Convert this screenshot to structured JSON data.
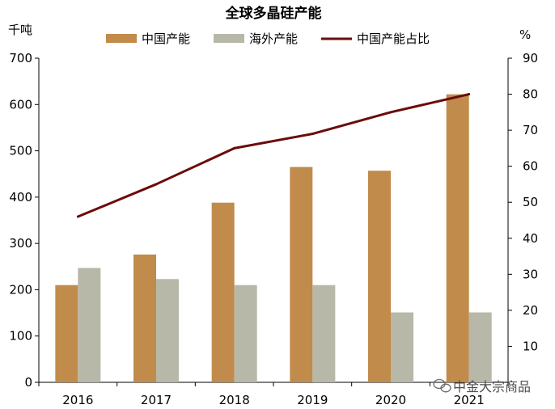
{
  "chart_data": {
    "type": "bar",
    "title": "全球多晶硅产能",
    "left_unit": "千吨",
    "right_unit": "%",
    "categories": [
      "2016",
      "2017",
      "2018",
      "2019",
      "2020",
      "2021"
    ],
    "series": [
      {
        "name": "中国产能",
        "type": "bar",
        "axis": "left",
        "color": "#c08b4b",
        "values": [
          210,
          276,
          388,
          465,
          457,
          622
        ]
      },
      {
        "name": "海外产能",
        "type": "bar",
        "axis": "left",
        "color": "#b8b8a8",
        "values": [
          247,
          223,
          210,
          210,
          151,
          151
        ]
      },
      {
        "name": "中国产能占比",
        "type": "line",
        "axis": "right",
        "color": "#6b0b0b",
        "values": [
          46,
          55,
          65,
          69,
          75,
          80
        ]
      }
    ],
    "ylim_left": [
      0,
      700
    ],
    "yticks_left": [
      0,
      100,
      200,
      300,
      400,
      500,
      600,
      700
    ],
    "ylim_right": [
      0,
      90
    ],
    "yticks_right": [
      10,
      20,
      30,
      40,
      50,
      60,
      70,
      80,
      90
    ],
    "legend_position": "top",
    "grid": false
  },
  "watermark": "中金大宗商品"
}
